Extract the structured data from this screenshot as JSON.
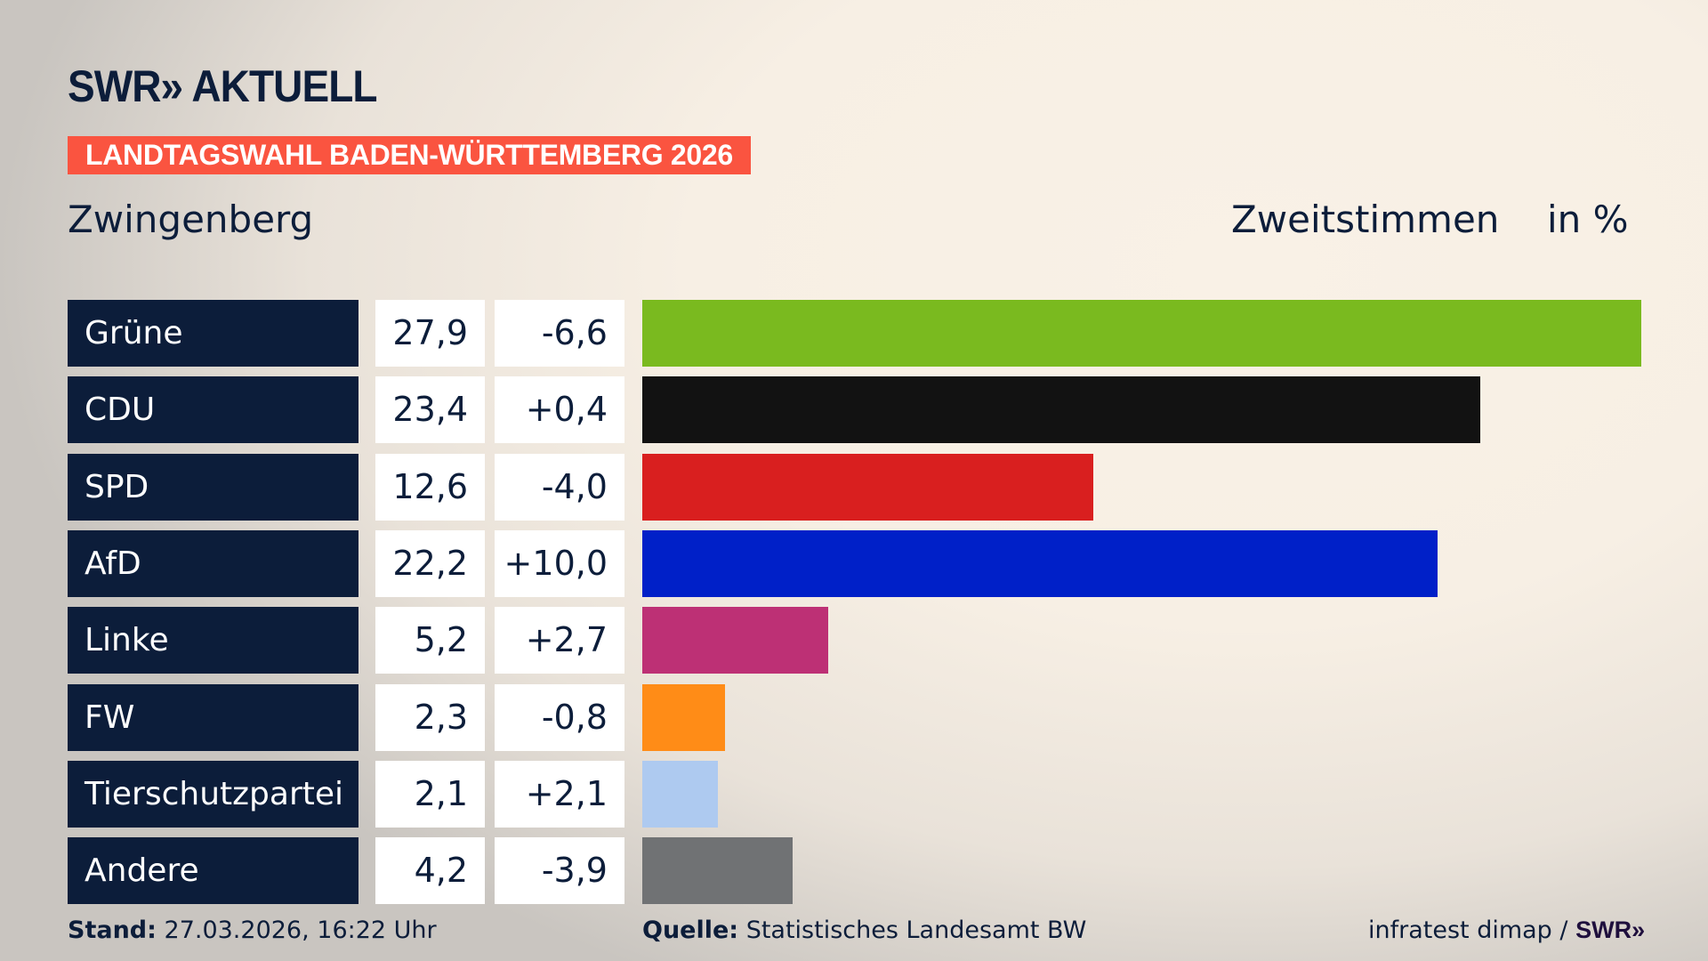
{
  "header": {
    "logo_text": "SWR» AKTUELL",
    "banner": "LANDTAGSWAHL BADEN-WÜRTTEMBERG 2026",
    "region": "Zwingenberg",
    "measure": "Zweitstimmen",
    "unit": "in %"
  },
  "chart_data": {
    "type": "bar",
    "orientation": "horizontal",
    "categories": [
      "Grüne",
      "CDU",
      "SPD",
      "AfD",
      "Linke",
      "FW",
      "Tierschutzpartei",
      "Andere"
    ],
    "series": [
      {
        "values": [
          27.9,
          23.4,
          12.6,
          22.2,
          5.2,
          2.3,
          2.1,
          4.2
        ]
      }
    ],
    "value_labels": [
      "27,9",
      "23,4",
      "12,6",
      "22,2",
      "5,2",
      "2,3",
      "2,1",
      "4,2"
    ],
    "change_labels": [
      "-6,6",
      "+0,4",
      "-4,0",
      "+10,0",
      "+2,7",
      "-0,8",
      "+2,1",
      "-3,9"
    ],
    "colors": [
      "#7aba1f",
      "#121212",
      "#d91f1f",
      "#0020c8",
      "#bd3075",
      "#ff8c17",
      "#aecaf0",
      "#707274"
    ],
    "xlim": [
      0,
      27.9
    ],
    "grid": false
  },
  "footer": {
    "stand_label": "Stand:",
    "stand_value": "27.03.2026, 16:22 Uhr",
    "source_label": "Quelle:",
    "source_value": "Statistisches Landesamt BW",
    "credit": "infratest dimap /",
    "credit_logo": "SWR»"
  }
}
